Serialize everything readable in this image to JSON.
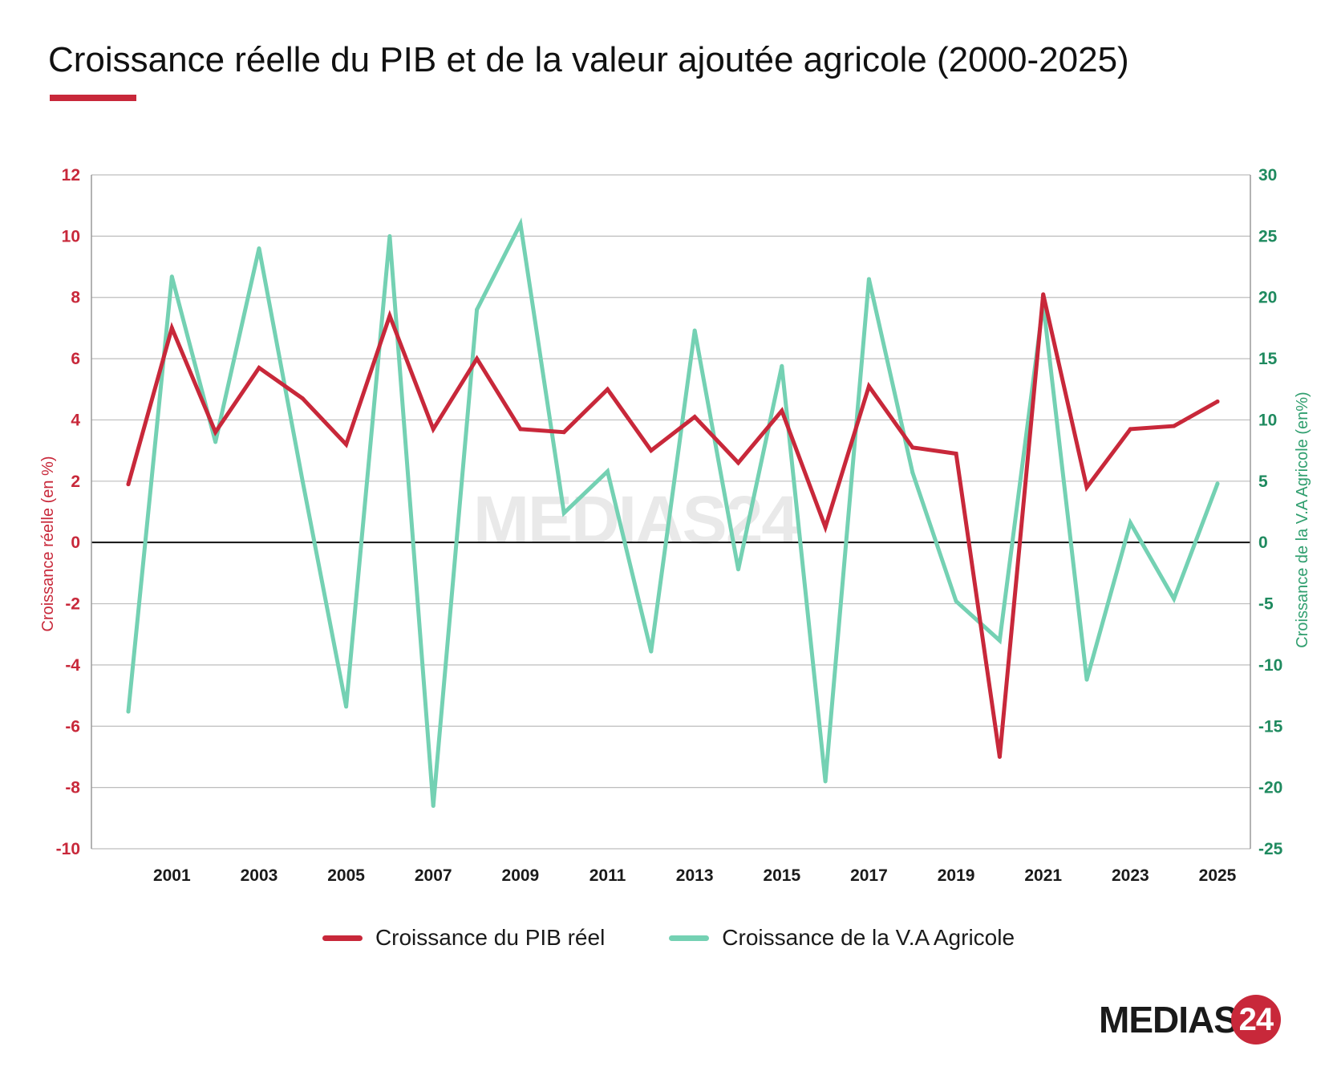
{
  "title": "Croissance réelle du PIB et de la valeur ajoutée agricole (2000-2025)",
  "brand": {
    "logo_text": "MEDIAS",
    "logo_num": "24",
    "accent": "#c8283a",
    "secondary": "#74d1b3"
  },
  "chart_data": {
    "type": "line",
    "title": "Croissance réelle du PIB et de la valeur ajoutée agricole (2000-2025)",
    "x": [
      2000,
      2001,
      2002,
      2003,
      2004,
      2005,
      2006,
      2007,
      2008,
      2009,
      2010,
      2011,
      2012,
      2013,
      2014,
      2015,
      2016,
      2017,
      2018,
      2019,
      2020,
      2021,
      2022,
      2023,
      2024,
      2025
    ],
    "x_tick_labels": [
      "2001",
      "2003",
      "2005",
      "2007",
      "2009",
      "2011",
      "2013",
      "2015",
      "2017",
      "2019",
      "2021",
      "2023",
      "2025"
    ],
    "ylabel_left": "Croissance réelle (en %)",
    "ylabel_right": "Croissance de la V.A Agricole (en%)",
    "ylim_left": [
      -10,
      12
    ],
    "ylim_right": [
      -25,
      30
    ],
    "y_ticks_left": [
      "12",
      "10",
      "8",
      "6",
      "4",
      "2",
      "0",
      "-2",
      "-4",
      "-6",
      "-8",
      "-10"
    ],
    "y_ticks_right": [
      "30",
      "25",
      "20",
      "15",
      "10",
      "5",
      "0",
      "-5",
      "-10",
      "-15",
      "-20",
      "-25"
    ],
    "grid": true,
    "legend_position": "bottom",
    "series": [
      {
        "name": "Croissance du PIB réel",
        "axis": "left",
        "color": "#c8283a",
        "values": [
          1.9,
          7.0,
          3.6,
          5.7,
          4.7,
          3.2,
          7.4,
          3.7,
          6.0,
          3.7,
          3.6,
          5.0,
          3.0,
          4.1,
          2.6,
          4.3,
          0.5,
          5.1,
          3.1,
          2.9,
          -7.0,
          8.1,
          1.8,
          3.7,
          3.8,
          4.6
        ]
      },
      {
        "name": "Croissance de la V.A Agricole",
        "axis": "right",
        "color": "#74d1b3",
        "values": [
          -13.8,
          21.7,
          8.2,
          24.0,
          5.0,
          -13.4,
          25.0,
          -21.5,
          19.0,
          26.0,
          2.4,
          5.8,
          -8.9,
          17.3,
          -2.2,
          14.4,
          -19.5,
          21.5,
          5.7,
          -4.8,
          -8.0,
          19.5,
          -11.2,
          1.6,
          -4.6,
          4.8
        ]
      }
    ]
  }
}
